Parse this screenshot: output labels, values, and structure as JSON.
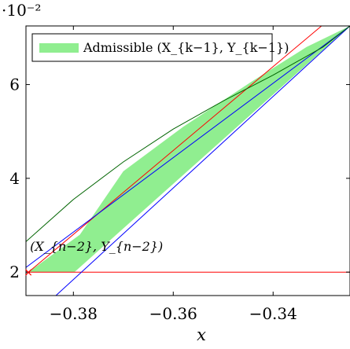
{
  "chart_data": {
    "type": "line",
    "title": "",
    "xlabel": "x",
    "ylabel": "",
    "xlim": [
      -0.3895,
      -0.3246
    ],
    "ylim": [
      1.5,
      7.25
    ],
    "y_scale_label": "·10⁻²",
    "x_ticks": [
      -0.38,
      -0.36,
      -0.34
    ],
    "x_tick_labels": [
      "−0.38",
      "−0.36",
      "−0.34"
    ],
    "y_ticks": [
      2,
      4,
      6
    ],
    "y_tick_labels": [
      "2",
      "4",
      "6"
    ],
    "grid": false,
    "legend_position": "top-left",
    "legend": [
      {
        "label": "Admissible (X_{k−1}, Y_{k−1})",
        "color": "#90EE90"
      }
    ],
    "series": [
      {
        "kind": "area",
        "color": "#90EE90",
        "points": [
          [
            -0.389,
            2.0
          ],
          [
            -0.3798,
            2.0
          ],
          [
            -0.3246,
            7.25
          ],
          [
            -0.3333,
            6.8
          ],
          [
            -0.3445,
            6.05
          ],
          [
            -0.358,
            5.1
          ],
          [
            -0.37,
            4.15
          ],
          [
            -0.3787,
            2.8
          ]
        ]
      },
      {
        "kind": "line",
        "color": "#ff0000",
        "points": [
          [
            -0.3895,
            2.0
          ],
          [
            -0.3246,
            2.0
          ]
        ]
      },
      {
        "kind": "line",
        "color": "#ff0000",
        "points": [
          [
            -0.389,
            2.0
          ],
          [
            -0.3303,
            7.25
          ]
        ]
      },
      {
        "kind": "line",
        "color": "#0000ff",
        "points": [
          [
            -0.3895,
            2.1
          ],
          [
            -0.3246,
            7.25
          ]
        ]
      },
      {
        "kind": "line",
        "color": "#0000ff",
        "points": [
          [
            -0.3835,
            1.5
          ],
          [
            -0.3246,
            7.25
          ]
        ]
      },
      {
        "kind": "line",
        "color": "#006400",
        "points": [
          [
            -0.3895,
            2.65
          ],
          [
            -0.38,
            3.55
          ],
          [
            -0.37,
            4.35
          ],
          [
            -0.36,
            5.05
          ],
          [
            -0.35,
            5.65
          ],
          [
            -0.34,
            6.2
          ],
          [
            -0.33,
            6.8
          ],
          [
            -0.3246,
            7.25
          ]
        ]
      }
    ],
    "markers": [
      {
        "x": -0.389,
        "y": 2.0,
        "symbol": "×",
        "color": "#ff0000"
      }
    ],
    "annotations": [
      {
        "text": "(X_{n−2}, Y_{n−2})",
        "x": -0.389,
        "y": 2.0
      }
    ]
  }
}
